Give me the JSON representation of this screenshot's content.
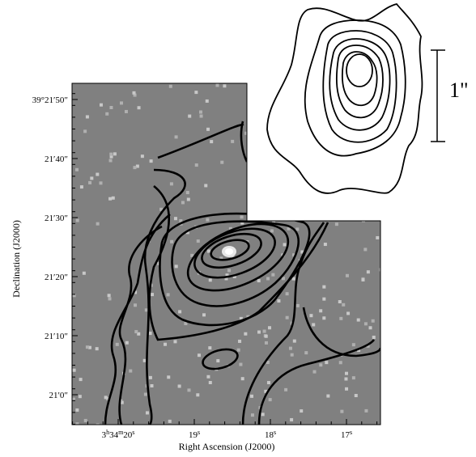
{
  "axes": {
    "x_label": "Right Ascension (J2000)",
    "y_label": "Declination (J2000)",
    "x_ticks": [
      [
        "3",
        "h",
        "34",
        "m",
        "20",
        "s"
      ],
      [
        "19",
        "s"
      ],
      [
        "18",
        "s"
      ],
      [
        "17",
        "s"
      ]
    ],
    "y_ticks": [
      "39°21′50″",
      "21′40″",
      "21′30″",
      "21′20″",
      "21′10″",
      "21′0″"
    ]
  },
  "inset": {
    "scale_label": "1\""
  }
}
